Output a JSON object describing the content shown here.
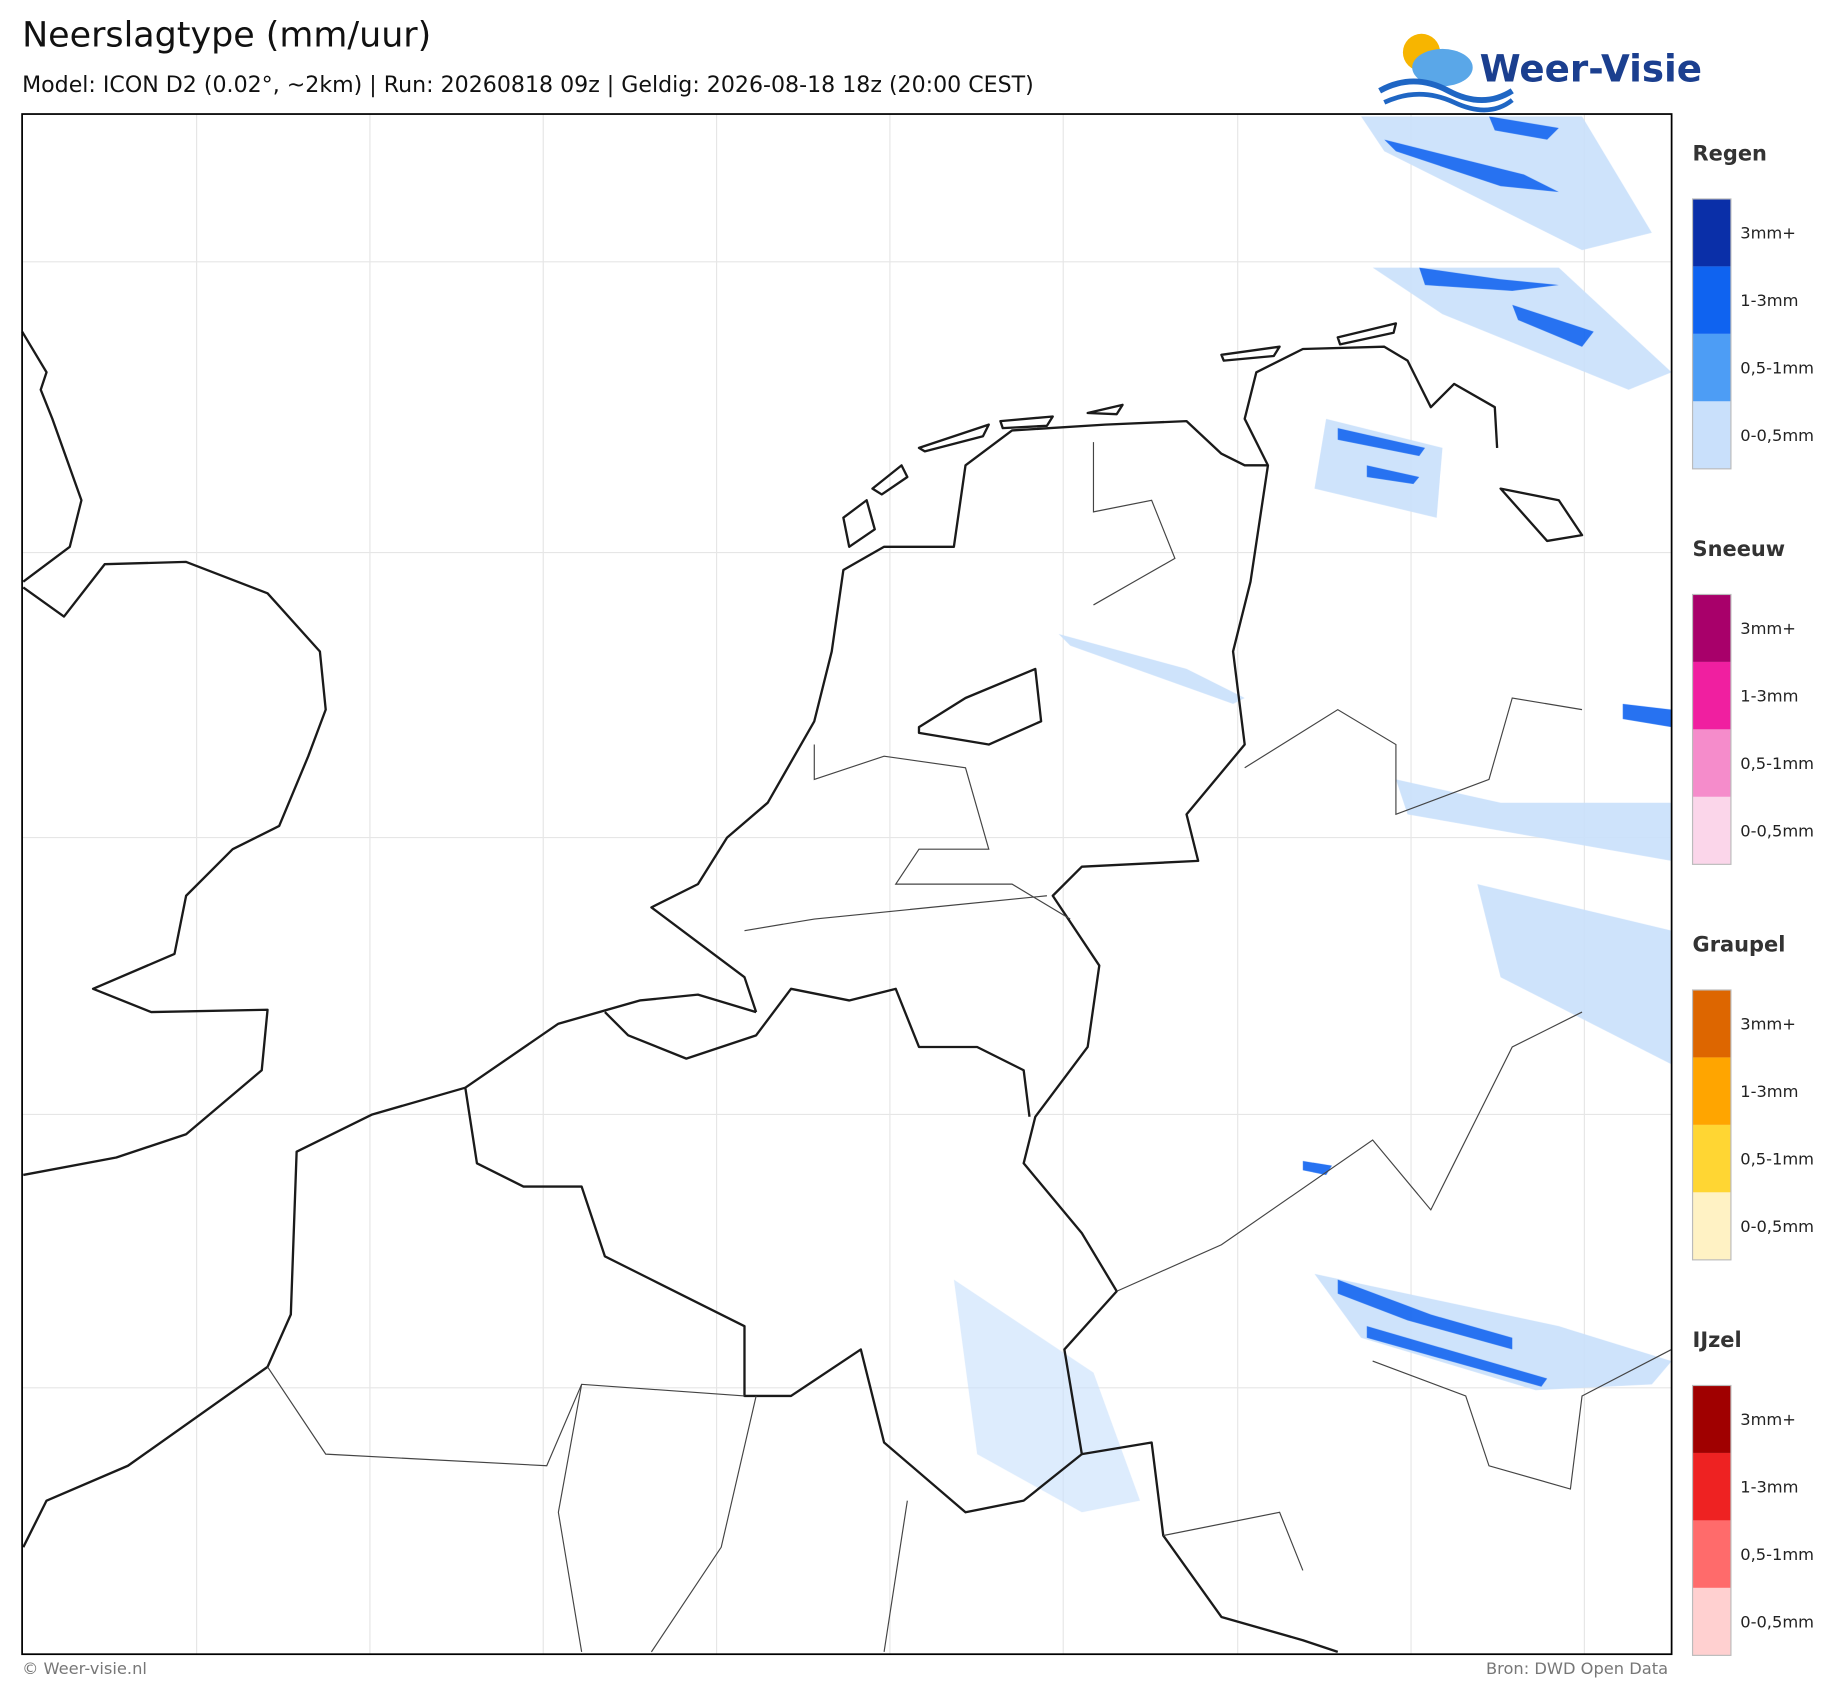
{
  "header": {
    "title": "Neerslagtype (mm/uur)",
    "subtitle": "Model: ICON D2 (0.02°, ~2km)  |  Run: 20260818 09z  |  Geldig: 2026-08-18 18z (20:00 CEST)",
    "logo": "Weer-Visie"
  },
  "legend": [
    {
      "name": "Regen",
      "items": [
        {
          "label": "3mm+",
          "color": "#0a2fa8"
        },
        {
          "label": "1-3mm",
          "color": "#0f63f0"
        },
        {
          "label": "0,5-1mm",
          "color": "#4d9df5"
        },
        {
          "label": "0-0,5mm",
          "color": "#c9e0fb"
        }
      ]
    },
    {
      "name": "Sneeuw",
      "items": [
        {
          "label": "3mm+",
          "color": "#a8006a"
        },
        {
          "label": "1-3mm",
          "color": "#f01fa0"
        },
        {
          "label": "0,5-1mm",
          "color": "#f58ccb"
        },
        {
          "label": "0-0,5mm",
          "color": "#fbd6ea"
        }
      ]
    },
    {
      "name": "Graupel",
      "items": [
        {
          "label": "3mm+",
          "color": "#dd6600"
        },
        {
          "label": "1-3mm",
          "color": "#ffa500"
        },
        {
          "label": "0,5-1mm",
          "color": "#ffd633"
        },
        {
          "label": "0-0,5mm",
          "color": "#fff2c4"
        }
      ]
    },
    {
      "name": "IJzel",
      "items": [
        {
          "label": "3mm+",
          "color": "#a00000"
        },
        {
          "label": "1-3mm",
          "color": "#ee2222"
        },
        {
          "label": "0,5-1mm",
          "color": "#ff6b6b"
        },
        {
          "label": "0-0,5mm",
          "color": "#ffd0d0"
        }
      ]
    }
  ],
  "footer": {
    "left": "© Weer-visie.nl",
    "right": "Bron: DWD Open Data"
  }
}
